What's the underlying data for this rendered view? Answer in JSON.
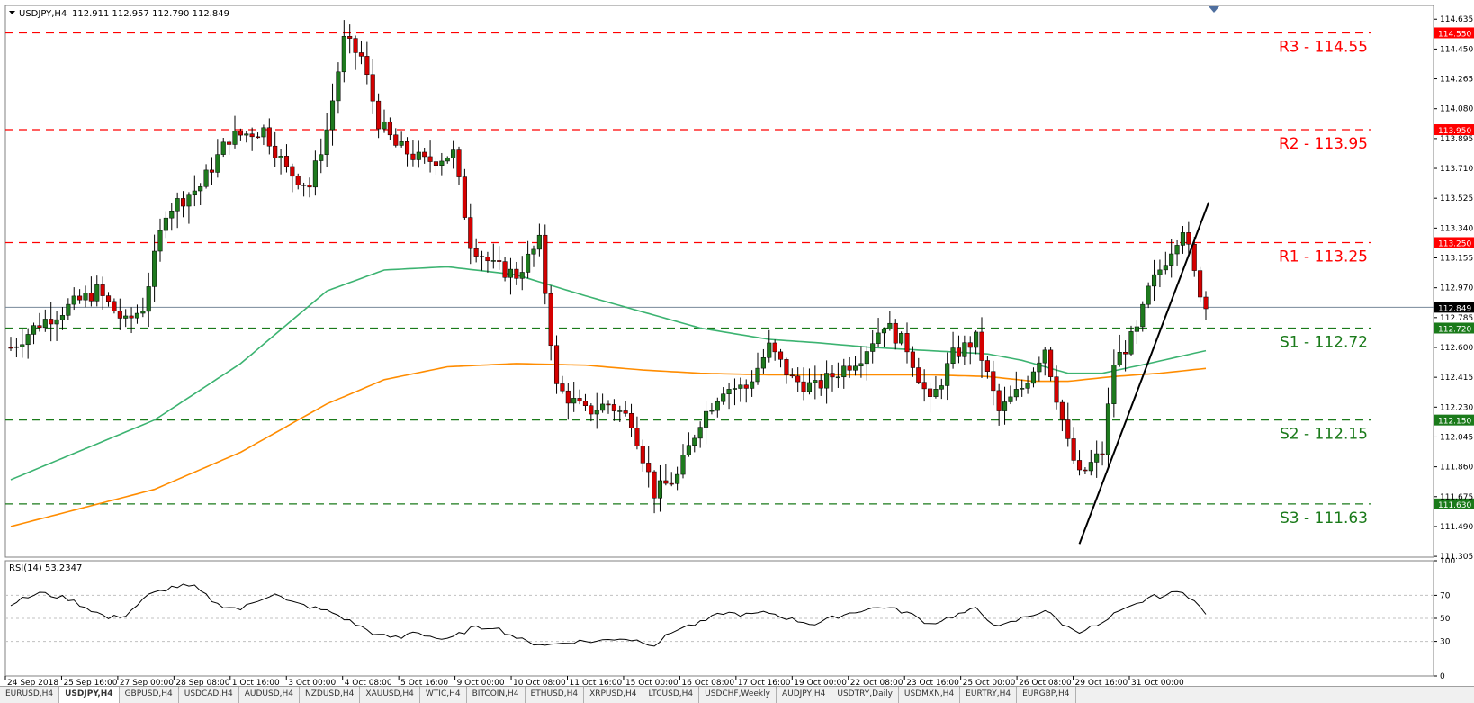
{
  "header": {
    "symbol": "USDJPY,H4",
    "ohlc": "112.911 112.957 112.790 112.849"
  },
  "rsi_header": "RSI(14) 53.2347",
  "tabs": [
    "EURUSD,H4",
    "USDJPY,H4",
    "GBPUSD,H4",
    "USDCAD,H4",
    "AUDUSD,H4",
    "NZDUSD,H4",
    "XAUUSD,H4",
    "WTIC,H4",
    "BITCOIN,H4",
    "ETHUSD,H4",
    "XRPUSD,H4",
    "LTCUSD,H4",
    "USDCHF,Weekly",
    "AUDJPY,H4",
    "USDTRY,Daily",
    "USDMXN,H4",
    "EURTRY,H4",
    "EURGBP,H4"
  ],
  "active_tab": 1,
  "colors": {
    "bull": "#1e7a1e",
    "bear": "#d40000",
    "ma_fast": "#3cb371",
    "ma_slow": "#ff8c00",
    "resistance": "#ff0000",
    "support": "#1a7a1a",
    "trendline": "#000000"
  },
  "chart_data": [
    {
      "type": "candlestick",
      "ylim": [
        111.3,
        114.72
      ],
      "y_ticks": [
        "114.635",
        "114.450",
        "114.265",
        "114.080",
        "113.895",
        "113.710",
        "113.525",
        "113.340",
        "113.155",
        "112.970",
        "112.785",
        "112.600",
        "112.415",
        "112.230",
        "112.045",
        "111.860",
        "111.675",
        "111.490",
        "111.305"
      ],
      "x_tick_labels": [
        "24 Sep 2018",
        "25 Sep 16:00",
        "27 Sep 00:00",
        "28 Sep 08:00",
        "1 Oct 16:00",
        "3 Oct 00:00",
        "4 Oct 08:00",
        "5 Oct 16:00",
        "9 Oct 00:00",
        "10 Oct 08:00",
        "11 Oct 16:00",
        "15 Oct 00:00",
        "16 Oct 08:00",
        "17 Oct 16:00",
        "19 Oct 00:00",
        "22 Oct 08:00",
        "23 Oct 16:00",
        "25 Oct 00:00",
        "26 Oct 08:00",
        "29 Oct 16:00",
        "31 Oct 00:00"
      ],
      "current_price": "112.849",
      "levels": [
        {
          "label": "R3 - 114.55",
          "tag": "114.550",
          "value": 114.55,
          "kind": "resistance"
        },
        {
          "label": "R2 - 113.95",
          "tag": "113.950",
          "value": 113.95,
          "kind": "resistance"
        },
        {
          "label": "R1 - 113.25",
          "tag": "113.250",
          "value": 113.25,
          "kind": "resistance"
        },
        {
          "label": "S1 - 112.72",
          "tag": "112.720",
          "value": 112.72,
          "kind": "support"
        },
        {
          "label": "S2 - 112.15",
          "tag": "112.150",
          "value": 112.15,
          "kind": "support"
        },
        {
          "label": "S3 - 111.63",
          "tag": "111.630",
          "value": 111.63,
          "kind": "support"
        }
      ],
      "ohlc_key_points": [
        [
          0,
          112.6
        ],
        [
          5,
          112.75
        ],
        [
          10,
          112.85
        ],
        [
          15,
          112.95
        ],
        [
          20,
          112.75
        ],
        [
          23,
          112.85
        ],
        [
          27,
          113.45
        ],
        [
          33,
          113.6
        ],
        [
          38,
          113.9
        ],
        [
          44,
          113.95
        ],
        [
          48,
          113.7
        ],
        [
          52,
          113.6
        ],
        [
          55,
          113.95
        ],
        [
          58,
          114.5
        ],
        [
          61,
          114.4
        ],
        [
          64,
          114.0
        ],
        [
          67,
          113.85
        ],
        [
          72,
          113.75
        ],
        [
          77,
          113.8
        ],
        [
          80,
          113.25
        ],
        [
          84,
          113.1
        ],
        [
          88,
          113.05
        ],
        [
          92,
          113.25
        ],
        [
          95,
          112.35
        ],
        [
          100,
          112.2
        ],
        [
          104,
          112.25
        ],
        [
          108,
          112.15
        ],
        [
          112,
          111.7
        ],
        [
          116,
          111.8
        ],
        [
          120,
          112.15
        ],
        [
          124,
          112.35
        ],
        [
          128,
          112.35
        ],
        [
          132,
          112.6
        ],
        [
          136,
          112.4
        ],
        [
          140,
          112.35
        ],
        [
          144,
          112.45
        ],
        [
          148,
          112.55
        ],
        [
          152,
          112.75
        ],
        [
          156,
          112.6
        ],
        [
          160,
          112.25
        ],
        [
          164,
          112.55
        ],
        [
          168,
          112.65
        ],
        [
          172,
          112.2
        ],
        [
          176,
          112.35
        ],
        [
          180,
          112.6
        ],
        [
          184,
          112.0
        ],
        [
          186,
          111.8
        ],
        [
          190,
          111.95
        ],
        [
          192,
          112.5
        ],
        [
          196,
          112.7
        ],
        [
          198,
          112.95
        ],
        [
          201,
          113.15
        ],
        [
          204,
          113.35
        ],
        [
          206,
          113.05
        ],
        [
          208,
          112.85
        ]
      ],
      "ma_fast_points": [
        [
          0,
          111.78
        ],
        [
          25,
          112.15
        ],
        [
          40,
          112.5
        ],
        [
          55,
          112.95
        ],
        [
          65,
          113.08
        ],
        [
          76,
          113.1
        ],
        [
          88,
          113.05
        ],
        [
          100,
          112.92
        ],
        [
          110,
          112.82
        ],
        [
          120,
          112.72
        ],
        [
          132,
          112.65
        ],
        [
          140,
          112.63
        ],
        [
          150,
          112.6
        ],
        [
          160,
          112.58
        ],
        [
          170,
          112.56
        ],
        [
          176,
          112.52
        ],
        [
          184,
          112.44
        ],
        [
          190,
          112.44
        ],
        [
          198,
          112.5
        ],
        [
          208,
          112.58
        ]
      ],
      "ma_slow_points": [
        [
          0,
          111.49
        ],
        [
          25,
          111.72
        ],
        [
          40,
          111.95
        ],
        [
          55,
          112.25
        ],
        [
          65,
          112.4
        ],
        [
          76,
          112.48
        ],
        [
          88,
          112.5
        ],
        [
          100,
          112.49
        ],
        [
          110,
          112.46
        ],
        [
          120,
          112.44
        ],
        [
          132,
          112.43
        ],
        [
          140,
          112.43
        ],
        [
          150,
          112.43
        ],
        [
          160,
          112.43
        ],
        [
          170,
          112.42
        ],
        [
          178,
          112.39
        ],
        [
          184,
          112.39
        ],
        [
          192,
          112.42
        ],
        [
          200,
          112.44
        ],
        [
          208,
          112.47
        ]
      ],
      "trendline": {
        "from": [
          111.382,
          186
        ],
        "to": [
          113.5,
          208.5
        ]
      }
    },
    {
      "type": "line",
      "name": "RSI(14)",
      "ylim": [
        0,
        100
      ],
      "y_ticks": [
        "100",
        "70",
        "50",
        "30",
        "0"
      ],
      "current_value": 53.2347,
      "key_points": [
        [
          0,
          63
        ],
        [
          5,
          72
        ],
        [
          10,
          67
        ],
        [
          15,
          55
        ],
        [
          17,
          50
        ],
        [
          20,
          53
        ],
        [
          24,
          70
        ],
        [
          28,
          77
        ],
        [
          30,
          78
        ],
        [
          32,
          77
        ],
        [
          36,
          62
        ],
        [
          40,
          58
        ],
        [
          44,
          68
        ],
        [
          46,
          72
        ],
        [
          48,
          65
        ],
        [
          52,
          60
        ],
        [
          56,
          55
        ],
        [
          60,
          45
        ],
        [
          64,
          35
        ],
        [
          68,
          33
        ],
        [
          70,
          39
        ],
        [
          74,
          33
        ],
        [
          76,
          31
        ],
        [
          80,
          41
        ],
        [
          84,
          43
        ],
        [
          86,
          38
        ],
        [
          90,
          29
        ],
        [
          94,
          27
        ],
        [
          98,
          30
        ],
        [
          102,
          30
        ],
        [
          106,
          33
        ],
        [
          110,
          30
        ],
        [
          112,
          27
        ],
        [
          116,
          41
        ],
        [
          120,
          46
        ],
        [
          124,
          55
        ],
        [
          128,
          53
        ],
        [
          132,
          55
        ],
        [
          136,
          49
        ],
        [
          140,
          45
        ],
        [
          144,
          52
        ],
        [
          148,
          57
        ],
        [
          152,
          60
        ],
        [
          156,
          55
        ],
        [
          160,
          45
        ],
        [
          164,
          52
        ],
        [
          168,
          58
        ],
        [
          172,
          42
        ],
        [
          176,
          50
        ],
        [
          180,
          57
        ],
        [
          184,
          42
        ],
        [
          186,
          39
        ],
        [
          190,
          45
        ],
        [
          192,
          53
        ],
        [
          196,
          62
        ],
        [
          198,
          68
        ],
        [
          201,
          70
        ],
        [
          204,
          74
        ],
        [
          206,
          65
        ],
        [
          208,
          53
        ]
      ]
    }
  ]
}
